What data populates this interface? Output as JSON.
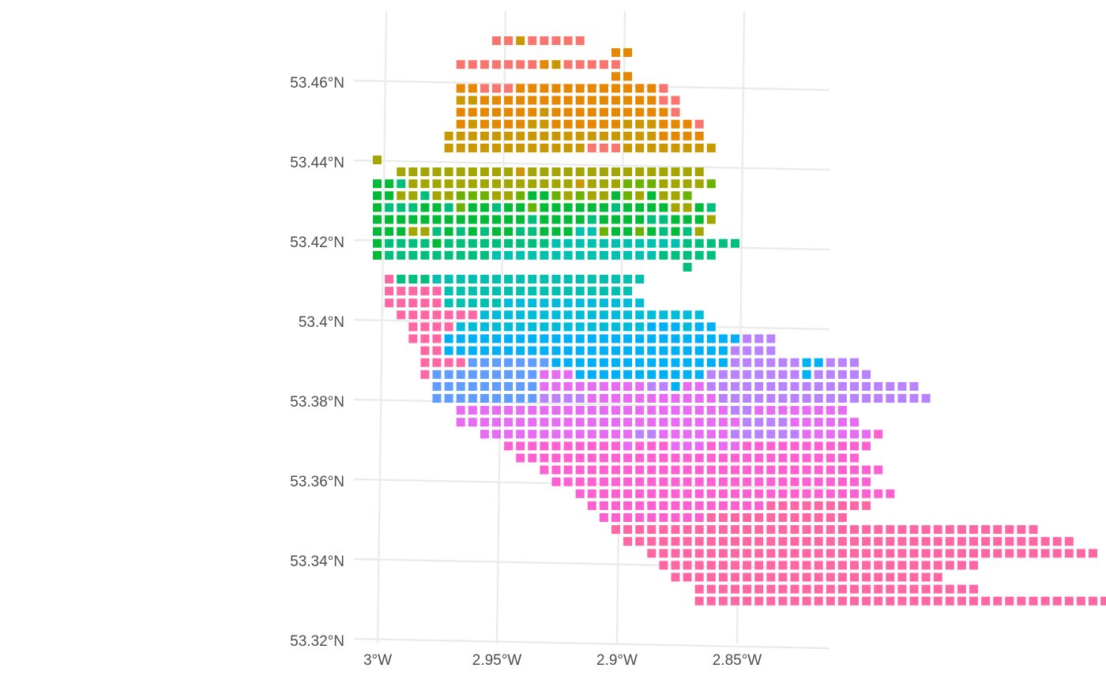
{
  "map": {
    "type": "gridded-cell-map",
    "axes": {
      "x_ticks": [
        "3°W",
        "2.95°W",
        "2.9°W",
        "2.85°W"
      ],
      "y_ticks": [
        "53.46°N",
        "53.44°N",
        "53.42°N",
        "53.4°N",
        "53.38°N",
        "53.36°N",
        "53.34°N",
        "53.32°N"
      ],
      "x_tick_values": [
        -3.0,
        -2.95,
        -2.9,
        -2.85
      ],
      "y_tick_values": [
        53.46,
        53.44,
        53.42,
        53.4,
        53.38,
        53.36,
        53.34,
        53.32
      ],
      "grid": true
    },
    "legend": "none",
    "palette": [
      "#F8766D",
      "#E58700",
      "#C99800",
      "#A3A500",
      "#6BB100",
      "#00BA38",
      "#00BF7D",
      "#00C0AF",
      "#00BCD8",
      "#00B0F6",
      "#619CFF",
      "#B983FF",
      "#E76BF3",
      "#FD61D1",
      "#FF67A4"
    ],
    "rows": [
      {
        "start": 10,
        "codes": "00200000"
      },
      {
        "start": 20,
        "codes": "11"
      },
      {
        "start": 7,
        "codes": "00000001200000"
      },
      {
        "start": 20,
        "codes": "11"
      },
      {
        "start": 7,
        "codes": "110001111111111110"
      },
      {
        "start": 7,
        "codes": "2211111111111111100"
      },
      {
        "start": 7,
        "codes": "1111111211111111110"
      },
      {
        "start": 7,
        "codes": "121111221111112221110"
      },
      {
        "start": 6,
        "codes": "2222222222222222221111"
      },
      {
        "start": 6,
        "codes": "22222222222200022222222"
      },
      {
        "start": 0,
        "codes": "3"
      },
      {
        "start": 2,
        "codes": "33333333332333333333333333"
      },
      {
        "start": 0,
        "codes": "55633333333333333233344433334"
      },
      {
        "start": 0,
        "codes": "553363344433455434335435334"
      },
      {
        "start": 0,
        "codes": "56665564556554555555655553356"
      },
      {
        "start": 0,
        "codes": "55555555555556555565555665553"
      },
      {
        "start": 0,
        "codes": "5553365656556655577455456563"
      },
      {
        "start": 0,
        "codes": "5666656666666667777777777766666"
      },
      {
        "start": 0,
        "codes": "56666666667777777777777766666"
      },
      {
        "start": 26,
        "codes": "6"
      },
      {
        "start": 1,
        "codes": "e666777777777777777777"
      },
      {
        "start": 1,
        "codes": "eeeee7777777777777777"
      },
      {
        "start": 1,
        "codes": "eeeee77777888888888888"
      },
      {
        "start": 2,
        "codes": "eeeeeee8888888888888888888"
      },
      {
        "start": 3,
        "codes": "eeee8888888888888888999899"
      },
      {
        "start": 3,
        "codes": "eee9999999999999999999999999bbb"
      },
      {
        "start": 4,
        "codes": "ee999999999999999999999999bbbb"
      },
      {
        "start": 4,
        "codes": "eeeeaaaaaaa999999999999999bbbbbb99bbb"
      },
      {
        "start": 4,
        "codes": "eaaaaaaaaaccc99999999999bbbbbbbb9bbbbb"
      },
      {
        "start": 5,
        "codes": "aaaaaaaaacccccccccbb9ccbbbbbbbbbbbbbbbbbb"
      },
      {
        "start": 5,
        "codes": "aaaaaaaaabbbbcccccccccccbbbbbbbbbbbbbbbbbb"
      },
      {
        "start": 7,
        "codes": "cccccccccccccccccccccccbbcccccccc"
      },
      {
        "start": 7,
        "codes": "ccccccccccccccccccccccccbbbbcccccc"
      },
      {
        "start": 9,
        "codes": "cccccccccccccbbccccccbbbbbbccccccd"
      },
      {
        "start": 11,
        "codes": "ddddddddddcdddcccdccddddddddddd"
      },
      {
        "start": 12,
        "codes": "ddddddddddddddddddddddddddddd"
      },
      {
        "start": 14,
        "codes": "ddddddddddddddddddddddddddddd"
      },
      {
        "start": 15,
        "codes": "ddddddddddddddddddddddddddd"
      },
      {
        "start": 17,
        "codes": "ddddddddddddddddddddddddddd"
      },
      {
        "start": 18,
        "codes": "dddddddddddddddeeeeeeeee"
      },
      {
        "start": 19,
        "codes": "dddddddddeeeeeeeeeeee"
      },
      {
        "start": 20,
        "codes": "eeeeeeeeeeeeeeeeeeeeeeeeeeeeeeeeeeee"
      },
      {
        "start": 21,
        "codes": "eeeeeeeeeeeeeeeeeeeeeeeeeeeeeeeeeeeeee"
      },
      {
        "start": 23,
        "codes": "eeeeeeeeeeeeeeeeeeeeeeeeeeeeeeeeeeeeee"
      },
      {
        "start": 24,
        "codes": "eeeeeeeeeeeeeeeeeeeeeeeeeee"
      },
      {
        "start": 25,
        "codes": "eeeeeeeeeeeeeeeeeeeeeee"
      },
      {
        "start": 27,
        "codes": "eeeeeeeeeeeeeeeeeeeeeeee"
      },
      {
        "start": 27,
        "codes": "eeeeeeeeeeeeeeeeeeeeeeeeeeeeeeeeeeeeeeeeeeeeeeeeee"
      }
    ]
  }
}
